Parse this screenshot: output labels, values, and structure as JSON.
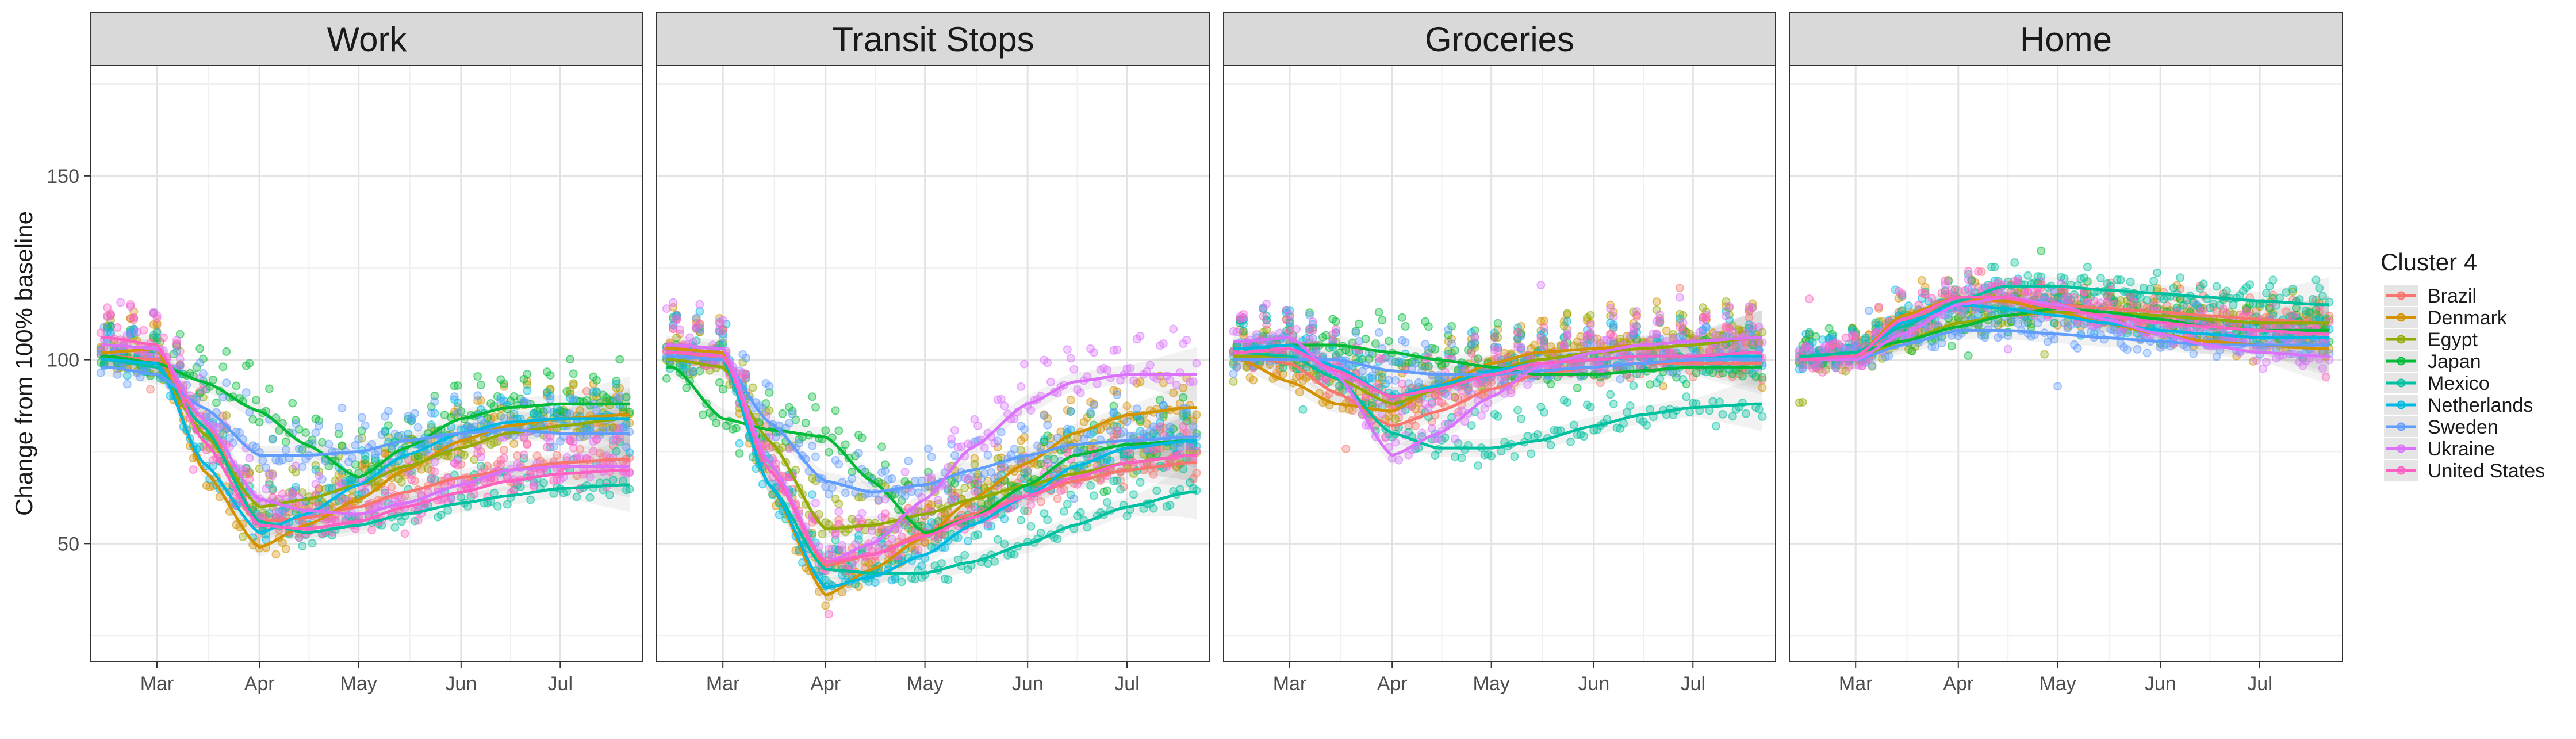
{
  "figure": {
    "ylabel": "Change from 100% baseline",
    "legend_title": "Cluster 4",
    "legend_position": "right"
  },
  "chart_data": {
    "type": "scatter",
    "facets": [
      "Work",
      "Transit Stops",
      "Groceries",
      "Home"
    ],
    "x_axis": {
      "tick_labels": [
        "Mar",
        "Apr",
        "May",
        "Jun",
        "Jul"
      ],
      "tick_dates": [
        "2020-03-01",
        "2020-04-01",
        "2020-05-01",
        "2020-06-01",
        "2020-07-01"
      ],
      "range": [
        "2020-02-10",
        "2020-07-26"
      ]
    },
    "y_axis": {
      "ticks": [
        50,
        100,
        150
      ],
      "range": [
        18,
        180
      ]
    },
    "grid": true,
    "point_style": "semi-transparent points with loess smooth lines and grey confidence bands",
    "countries": [
      {
        "name": "Brazil",
        "color": "#F8766D"
      },
      {
        "name": "Denmark",
        "color": "#D39200"
      },
      {
        "name": "Egypt",
        "color": "#93AA00"
      },
      {
        "name": "Japan",
        "color": "#00BA38"
      },
      {
        "name": "Mexico",
        "color": "#00C19F"
      },
      {
        "name": "Netherlands",
        "color": "#00B9E3"
      },
      {
        "name": "Sweden",
        "color": "#619CFF"
      },
      {
        "name": "Ukraine",
        "color": "#DB72FB"
      },
      {
        "name": "United States",
        "color": "#FF61C3"
      }
    ],
    "x_dates": [
      "2020-02-15",
      "2020-03-01",
      "2020-03-15",
      "2020-04-01",
      "2020-04-15",
      "2020-05-01",
      "2020-05-15",
      "2020-06-01",
      "2020-06-15",
      "2020-07-01",
      "2020-07-20"
    ],
    "smooth_series": {
      "Work": {
        "Brazil": [
          101,
          100,
          84,
          56,
          57,
          60,
          64,
          68,
          70,
          72,
          73
        ],
        "Denmark": [
          102,
          103,
          70,
          49,
          55,
          62,
          70,
          78,
          82,
          84,
          85
        ],
        "Egypt": [
          100,
          98,
          80,
          60,
          62,
          66,
          71,
          76,
          80,
          82,
          84
        ],
        "Japan": [
          101,
          99,
          94,
          86,
          77,
          68,
          76,
          84,
          87,
          88,
          88
        ],
        "Mexico": [
          100,
          98,
          82,
          56,
          53,
          55,
          58,
          61,
          63,
          65,
          66
        ],
        "Netherlands": [
          100,
          99,
          72,
          53,
          58,
          66,
          74,
          80,
          83,
          84,
          84
        ],
        "Sweden": [
          98,
          96,
          87,
          74,
          74,
          75,
          78,
          80,
          81,
          80,
          80
        ],
        "Ukraine": [
          104,
          103,
          84,
          62,
          59,
          58,
          61,
          66,
          70,
          71,
          71
        ],
        "United States": [
          106,
          104,
          78,
          55,
          54,
          56,
          60,
          64,
          67,
          69,
          70
        ]
      },
      "Transit Stops": {
        "Brazil": [
          102,
          100,
          72,
          44,
          47,
          53,
          58,
          63,
          67,
          70,
          72
        ],
        "Denmark": [
          103,
          102,
          66,
          36,
          43,
          52,
          62,
          72,
          80,
          85,
          87
        ],
        "Egypt": [
          100,
          98,
          78,
          54,
          55,
          58,
          62,
          66,
          69,
          72,
          74
        ],
        "Japan": [
          98,
          84,
          81,
          79,
          67,
          53,
          57,
          66,
          74,
          77,
          78
        ],
        "Mexico": [
          101,
          100,
          66,
          43,
          42,
          42,
          45,
          50,
          55,
          60,
          64
        ],
        "Netherlands": [
          102,
          101,
          66,
          38,
          41,
          47,
          55,
          63,
          71,
          76,
          78
        ],
        "Sweden": [
          101,
          100,
          83,
          67,
          64,
          66,
          70,
          74,
          77,
          78,
          79
        ],
        "Ukraine": [
          104,
          103,
          72,
          45,
          50,
          62,
          76,
          88,
          94,
          96,
          96
        ],
        "United States": [
          102,
          101,
          70,
          45,
          47,
          52,
          57,
          63,
          68,
          72,
          74
        ]
      },
      "Groceries": {
        "Brazil": [
          101,
          99,
          91,
          82,
          86,
          92,
          96,
          98,
          99,
          99,
          99
        ],
        "Denmark": [
          100,
          94,
          88,
          86,
          93,
          99,
          102,
          103,
          104,
          105,
          106
        ],
        "Egypt": [
          101,
          101,
          95,
          88,
          92,
          97,
          100,
          102,
          103,
          104,
          106
        ],
        "Japan": [
          103,
          104,
          104,
          102,
          100,
          98,
          96,
          96,
          97,
          98,
          98
        ],
        "Mexico": [
          102,
          101,
          95,
          80,
          76,
          76,
          78,
          82,
          85,
          87,
          88
        ],
        "Netherlands": [
          103,
          104,
          98,
          90,
          93,
          97,
          99,
          100,
          101,
          101,
          101
        ],
        "Sweden": [
          100,
          100,
          100,
          97,
          96,
          96,
          97,
          98,
          99,
          100,
          100
        ],
        "Ukraine": [
          105,
          106,
          96,
          74,
          80,
          90,
          98,
          102,
          104,
          105,
          106
        ],
        "United States": [
          102,
          103,
          97,
          90,
          92,
          96,
          99,
          100,
          101,
          101,
          102
        ]
      },
      "Home": {
        "Brazil": [
          100,
          100,
          110,
          116,
          116,
          115,
          114,
          113,
          112,
          111,
          110
        ],
        "Denmark": [
          100,
          101,
          112,
          117,
          116,
          113,
          110,
          107,
          105,
          104,
          103
        ],
        "Egypt": [
          100,
          100,
          105,
          110,
          112,
          113,
          113,
          112,
          111,
          110,
          110
        ],
        "Japan": [
          101,
          102,
          105,
          109,
          112,
          114,
          113,
          111,
          109,
          108,
          108
        ],
        "Mexico": [
          101,
          102,
          109,
          116,
          120,
          120,
          119,
          118,
          117,
          116,
          115
        ],
        "Netherlands": [
          100,
          101,
          110,
          115,
          114,
          112,
          110,
          108,
          107,
          106,
          106
        ],
        "Sweden": [
          100,
          100,
          104,
          108,
          108,
          107,
          106,
          105,
          104,
          104,
          104
        ],
        "Ukraine": [
          100,
          100,
          107,
          115,
          117,
          115,
          111,
          107,
          104,
          102,
          101
        ],
        "United States": [
          100,
          101,
          111,
          117,
          117,
          114,
          112,
          110,
          109,
          108,
          107
        ]
      }
    }
  }
}
